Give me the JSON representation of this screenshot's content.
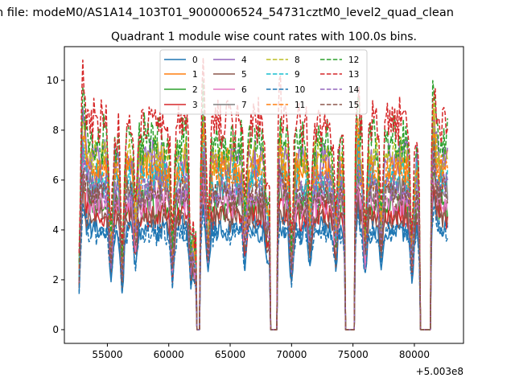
{
  "figure": {
    "suptitle": "n file: modeM0/AS1A14_103T01_9000006524_54731cztM0_level2_quad_clean"
  },
  "chart_data": {
    "type": "line",
    "title": "Quadrant 1 module wise count rates with 100.0s bins.",
    "xlabel": "",
    "ylabel": "",
    "x_offset_label": "+5.003e8",
    "x_offset": 500300000,
    "xlim": [
      51500,
      84000
    ],
    "ylim": [
      -0.55,
      11.35
    ],
    "x_ticks": [
      55000,
      60000,
      65000,
      70000,
      75000,
      80000
    ],
    "x_tick_labels": [
      "55000",
      "60000",
      "65000",
      "70000",
      "75000",
      "80000"
    ],
    "y_ticks": [
      0,
      2,
      4,
      6,
      8,
      10
    ],
    "y_tick_labels": [
      "0",
      "2",
      "4",
      "6",
      "8",
      "10"
    ],
    "grid": false,
    "legend_placement": "top-center",
    "bin_seconds": 100,
    "x_start": 52700,
    "x_end": 82700,
    "gaps": [
      {
        "x0": 62300,
        "x1": 62500,
        "value": 0
      },
      {
        "x0": 68300,
        "x1": 68800,
        "value": 0
      },
      {
        "x0": 74400,
        "x1": 75100,
        "value": 0
      },
      {
        "x0": 80500,
        "x1": 81300,
        "value": 0
      }
    ],
    "dips": [
      {
        "x": 55300,
        "depth": 0.5
      },
      {
        "x": 56200,
        "depth": 0.62
      },
      {
        "x": 57300,
        "depth": 0.35
      },
      {
        "x": 60300,
        "depth": 0.55
      },
      {
        "x": 61800,
        "depth": 0.55
      },
      {
        "x": 62100,
        "depth": 0.5
      },
      {
        "x": 63200,
        "depth": 0.45
      },
      {
        "x": 66200,
        "depth": 0.35
      },
      {
        "x": 68000,
        "depth": 0.3
      },
      {
        "x": 70000,
        "depth": 0.55
      },
      {
        "x": 71500,
        "depth": 0.35
      },
      {
        "x": 73600,
        "depth": 0.4
      },
      {
        "x": 76000,
        "depth": 0.45
      },
      {
        "x": 77300,
        "depth": 0.35
      },
      {
        "x": 79800,
        "depth": 0.5
      }
    ],
    "peaks": [
      {
        "x": 53000,
        "boost": 0.25
      },
      {
        "x": 62800,
        "boost": 0.2
      },
      {
        "x": 68900,
        "boost": 0.25
      },
      {
        "x": 75300,
        "boost": 0.2
      },
      {
        "x": 81500,
        "boost": 0.3
      }
    ],
    "series": [
      {
        "name": "0",
        "color": "#1f77b4",
        "dash": "solid",
        "level": 4.0
      },
      {
        "name": "1",
        "color": "#ff7f0e",
        "dash": "solid",
        "level": 6.5
      },
      {
        "name": "2",
        "color": "#2ca02c",
        "dash": "solid",
        "level": 5.0
      },
      {
        "name": "3",
        "color": "#d62728",
        "dash": "solid",
        "level": 4.6
      },
      {
        "name": "4",
        "color": "#9467bd",
        "dash": "solid",
        "level": 6.8
      },
      {
        "name": "5",
        "color": "#8c564b",
        "dash": "solid",
        "level": 4.5
      },
      {
        "name": "6",
        "color": "#e377c2",
        "dash": "solid",
        "level": 5.2
      },
      {
        "name": "7",
        "color": "#7f7f7f",
        "dash": "solid",
        "level": 5.8
      },
      {
        "name": "8",
        "color": "#bcbd22",
        "dash": "dashed",
        "level": 6.9
      },
      {
        "name": "9",
        "color": "#17becf",
        "dash": "dashed",
        "level": 6.0
      },
      {
        "name": "10",
        "color": "#1f77b4",
        "dash": "dashed",
        "level": 3.9
      },
      {
        "name": "11",
        "color": "#ff7f0e",
        "dash": "dashed",
        "level": 6.3
      },
      {
        "name": "12",
        "color": "#2ca02c",
        "dash": "dashed",
        "level": 7.6
      },
      {
        "name": "13",
        "color": "#d62728",
        "dash": "dashed",
        "level": 8.2
      },
      {
        "name": "14",
        "color": "#9467bd",
        "dash": "dashed",
        "level": 5.6
      },
      {
        "name": "15",
        "color": "#8c564b",
        "dash": "dashed",
        "level": 5.4
      }
    ]
  }
}
